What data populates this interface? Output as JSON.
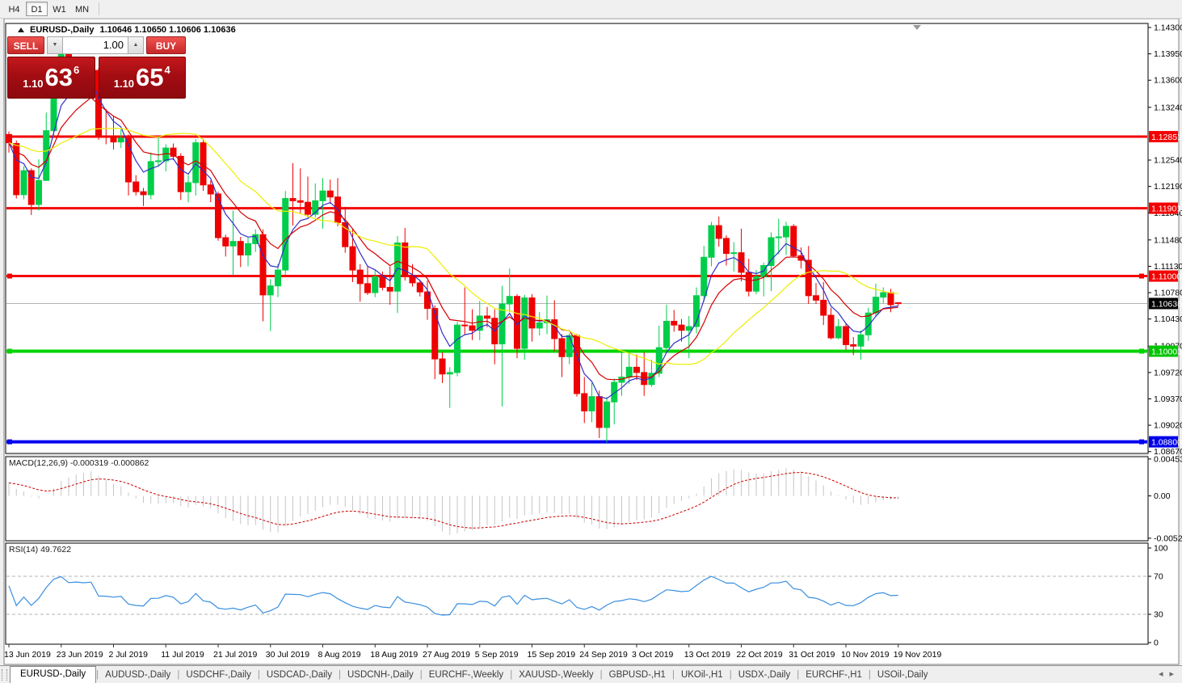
{
  "toolbar": {
    "timeframes": [
      "H4",
      "D1",
      "W1",
      "MN"
    ],
    "active": "D1"
  },
  "window": {
    "title": {
      "symbol": "EURUSD-,Daily",
      "ohlc": "1.10646 1.10650 1.10606 1.10636"
    }
  },
  "trade_panel": {
    "sell_label": "SELL",
    "buy_label": "BUY",
    "volume": "1.00",
    "sell_quote": {
      "prefix": "1.10",
      "big": "63",
      "sup": "6"
    },
    "buy_quote": {
      "prefix": "1.10",
      "big": "65",
      "sup": "4"
    }
  },
  "indicator_labels": {
    "macd": "MACD(12,26,9) -0.000319 -0.000862",
    "rsi": "RSI(14) 49.7622"
  },
  "tabs": {
    "active": "EURUSD-,Daily",
    "items": [
      "EURUSD-,Daily",
      "AUDUSD-,Daily",
      "USDCHF-,Daily",
      "USDCAD-,Daily",
      "USDCNH-,Daily",
      "EURCHF-,Weekly",
      "XAUUSD-,Weekly",
      "GBPUSD-,H1",
      "UKOil-,H1",
      "USDX-,Daily",
      "EURCHF-,H1",
      "USOil-,Daily"
    ]
  },
  "chart_data": {
    "type": "candlestick",
    "symbol": "EURUSD-",
    "timeframe": "Daily",
    "current_bar": {
      "open": 1.10646,
      "high": 1.1065,
      "low": 1.10606,
      "close": 1.10636
    },
    "y_range_visible": [
      1.0867,
      1.143
    ],
    "colors": {
      "bull": "#00CE4A",
      "bear": "#EE0101",
      "ma_fast": "#2F2FC8",
      "ma_mid": "#D40000",
      "ma_slow": "#EDED00",
      "macd_hist": "#C6C6C6",
      "macd_signal": "#CC0000",
      "rsi": "#3A8FE0",
      "level_red": "#F40000",
      "level_green": "#00D400",
      "level_blue": "#0000F0",
      "current_price_line": "#B4B4B4",
      "current_price_tag": "#000000"
    },
    "y_axis_ticks": [
      "1.14300",
      "1.13950",
      "1.13600",
      "1.13240",
      "1.12540",
      "1.12190",
      "1.11840",
      "1.11480",
      "1.11130",
      "1.10780",
      "1.10430",
      "1.10070",
      "1.09720",
      "1.09370",
      "1.09020",
      "1.08670"
    ],
    "price_tags": [
      {
        "label": "1.12851",
        "bg": "#F40000",
        "fg": "#FFFFFF"
      },
      {
        "label": "1.11901",
        "bg": "#F40000",
        "fg": "#FFFFFF"
      },
      {
        "label": "1.11000",
        "bg": "#F40000",
        "fg": "#FFFFFF"
      },
      {
        "label": "1.10636",
        "bg": "#000000",
        "fg": "#FFFFFF"
      },
      {
        "label": "1.10003",
        "bg": "#00C400",
        "fg": "#FFFFFF"
      },
      {
        "label": "1.08800",
        "bg": "#0000E8",
        "fg": "#FFFFFF"
      }
    ],
    "horizontal_lines": [
      {
        "price": 1.12851,
        "color": "#F40000",
        "width": 3,
        "handles": false
      },
      {
        "price": 1.11901,
        "color": "#F40000",
        "width": 3,
        "handles": false
      },
      {
        "price": 1.11,
        "color": "#F40000",
        "width": 3,
        "handles": true
      },
      {
        "price": 1.10003,
        "color": "#00D400",
        "width": 4,
        "handles": true
      },
      {
        "price": 1.088,
        "color": "#0000F0",
        "width": 4,
        "handles": true
      }
    ],
    "current_price": 1.10636,
    "x_labels": [
      "13 Jun 2019",
      "23 Jun 2019",
      "2 Jul 2019",
      "11 Jul 2019",
      "21 Jul 2019",
      "30 Jul 2019",
      "8 Aug 2019",
      "18 Aug 2019",
      "27 Aug 2019",
      "5 Sep 2019",
      "15 Sep 2019",
      "24 Sep 2019",
      "3 Oct 2019",
      "13 Oct 2019",
      "22 Oct 2019",
      "31 Oct 2019",
      "10 Nov 2019",
      "19 Nov 2019"
    ],
    "label_every_n_bars": 7,
    "candles": [
      [
        1.1288,
        1.1292,
        1.1264,
        1.1277
      ],
      [
        1.1276,
        1.128,
        1.1203,
        1.1208
      ],
      [
        1.1208,
        1.1246,
        1.1202,
        1.124
      ],
      [
        1.124,
        1.1243,
        1.1181,
        1.1195
      ],
      [
        1.1195,
        1.1255,
        1.1187,
        1.1227
      ],
      [
        1.1227,
        1.1317,
        1.1226,
        1.1293
      ],
      [
        1.1293,
        1.1378,
        1.1285,
        1.1369
      ],
      [
        1.1369,
        1.1404,
        1.1362,
        1.1399
      ],
      [
        1.1399,
        1.1412,
        1.1344,
        1.1365
      ],
      [
        1.1365,
        1.1391,
        1.1348,
        1.1371
      ],
      [
        1.1371,
        1.1388,
        1.1361,
        1.1367
      ],
      [
        1.1367,
        1.1391,
        1.1351,
        1.1373
      ],
      [
        1.1373,
        1.1376,
        1.1281,
        1.1286
      ],
      [
        1.1286,
        1.1322,
        1.1275,
        1.1285
      ],
      [
        1.1285,
        1.1312,
        1.1268,
        1.1278
      ],
      [
        1.1278,
        1.1295,
        1.127,
        1.1283
      ],
      [
        1.1283,
        1.1288,
        1.1207,
        1.1225
      ],
      [
        1.1225,
        1.1234,
        1.1207,
        1.1212
      ],
      [
        1.1212,
        1.1217,
        1.1193,
        1.1208
      ],
      [
        1.1208,
        1.1264,
        1.1202,
        1.1252
      ],
      [
        1.1252,
        1.1285,
        1.1245,
        1.1253
      ],
      [
        1.1253,
        1.1275,
        1.1239,
        1.127
      ],
      [
        1.127,
        1.1276,
        1.1254,
        1.1259
      ],
      [
        1.1259,
        1.1263,
        1.1201,
        1.1212
      ],
      [
        1.1212,
        1.1234,
        1.1198,
        1.1224
      ],
      [
        1.1224,
        1.1282,
        1.1207,
        1.1277
      ],
      [
        1.1277,
        1.1282,
        1.1213,
        1.1221
      ],
      [
        1.1221,
        1.1227,
        1.1198,
        1.1209
      ],
      [
        1.1209,
        1.1212,
        1.1147,
        1.1151
      ],
      [
        1.1151,
        1.1155,
        1.1126,
        1.114
      ],
      [
        1.114,
        1.1187,
        1.1101,
        1.1146
      ],
      [
        1.1146,
        1.1152,
        1.1112,
        1.1128
      ],
      [
        1.1128,
        1.1151,
        1.1113,
        1.1143
      ],
      [
        1.1143,
        1.1162,
        1.1132,
        1.1155
      ],
      [
        1.1155,
        1.1162,
        1.104,
        1.1075
      ],
      [
        1.1075,
        1.1096,
        1.1027,
        1.1087
      ],
      [
        1.1087,
        1.1116,
        1.1072,
        1.1108
      ],
      [
        1.1108,
        1.1213,
        1.1101,
        1.1203
      ],
      [
        1.1203,
        1.125,
        1.1167,
        1.12
      ],
      [
        1.12,
        1.1243,
        1.1183,
        1.1198
      ],
      [
        1.1198,
        1.1232,
        1.1178,
        1.1182
      ],
      [
        1.1182,
        1.1223,
        1.1178,
        1.12
      ],
      [
        1.12,
        1.123,
        1.1163,
        1.1213
      ],
      [
        1.1213,
        1.1228,
        1.1196,
        1.1205
      ],
      [
        1.1205,
        1.123,
        1.1166,
        1.1171
      ],
      [
        1.1171,
        1.1192,
        1.1131,
        1.1139
      ],
      [
        1.1139,
        1.1163,
        1.1092,
        1.1108
      ],
      [
        1.1108,
        1.1116,
        1.1066,
        1.109
      ],
      [
        1.109,
        1.1114,
        1.1075,
        1.1078
      ],
      [
        1.1078,
        1.1108,
        1.1072,
        1.1099
      ],
      [
        1.1099,
        1.1106,
        1.1081,
        1.1085
      ],
      [
        1.1085,
        1.1113,
        1.1062,
        1.108
      ],
      [
        1.108,
        1.1153,
        1.1051,
        1.1144
      ],
      [
        1.1144,
        1.1164,
        1.1094,
        1.1101
      ],
      [
        1.1101,
        1.1116,
        1.1086,
        1.1091
      ],
      [
        1.1091,
        1.1095,
        1.1073,
        1.1079
      ],
      [
        1.1079,
        1.1094,
        1.1042,
        1.1057
      ],
      [
        1.1057,
        1.1061,
        1.0963,
        1.099
      ],
      [
        1.099,
        1.0999,
        1.0958,
        1.097
      ],
      [
        1.097,
        1.0979,
        1.0925,
        1.0972
      ],
      [
        1.0972,
        1.1039,
        1.0967,
        1.1035
      ],
      [
        1.1035,
        1.1085,
        1.1022,
        1.1034
      ],
      [
        1.1034,
        1.1056,
        1.1015,
        1.1028
      ],
      [
        1.1028,
        1.1067,
        1.1015,
        1.1047
      ],
      [
        1.1047,
        1.1059,
        1.1032,
        1.1044
      ],
      [
        1.1044,
        1.1056,
        1.0983,
        1.101
      ],
      [
        1.101,
        1.1087,
        1.0927,
        1.1063
      ],
      [
        1.1063,
        1.111,
        1.1052,
        1.1073
      ],
      [
        1.1073,
        1.1076,
        1.0991,
        1.1004
      ],
      [
        1.1004,
        1.1075,
        1.0989,
        1.1071
      ],
      [
        1.1071,
        1.1076,
        1.1013,
        1.1031
      ],
      [
        1.1031,
        1.1052,
        1.1021,
        1.1038
      ],
      [
        1.1038,
        1.1074,
        1.1023,
        1.1042
      ],
      [
        1.1042,
        1.1068,
        1.1,
        1.1017
      ],
      [
        1.1017,
        1.1023,
        1.0966,
        1.0993
      ],
      [
        1.0993,
        1.1024,
        1.0983,
        1.1021
      ],
      [
        1.1021,
        1.1023,
        1.094,
        1.0944
      ],
      [
        1.0944,
        1.0966,
        1.0905,
        1.0921
      ],
      [
        1.0921,
        1.0958,
        1.0906,
        1.094
      ],
      [
        1.094,
        1.0948,
        1.0885,
        1.0899
      ],
      [
        1.0899,
        1.0939,
        1.0879,
        1.0933
      ],
      [
        1.0933,
        1.0964,
        1.0903,
        1.0959
      ],
      [
        1.0959,
        1.0999,
        1.0941,
        1.0966
      ],
      [
        1.0966,
        1.0999,
        1.0957,
        1.0979
      ],
      [
        1.0979,
        1.0996,
        1.0962,
        1.0972
      ],
      [
        1.0972,
        1.0999,
        1.0941,
        1.0956
      ],
      [
        1.0956,
        1.0989,
        1.0953,
        1.0971
      ],
      [
        1.0971,
        1.1034,
        1.0966,
        1.1005
      ],
      [
        1.1005,
        1.1062,
        1.1002,
        1.104
      ],
      [
        1.104,
        1.1055,
        1.1026,
        1.1035
      ],
      [
        1.1035,
        1.1043,
        1.1013,
        1.1028
      ],
      [
        1.1028,
        1.1047,
        1.0991,
        1.1033
      ],
      [
        1.1033,
        1.1085,
        1.1024,
        1.1074
      ],
      [
        1.1074,
        1.114,
        1.1066,
        1.1125
      ],
      [
        1.1125,
        1.1172,
        1.1113,
        1.1167
      ],
      [
        1.1167,
        1.1179,
        1.1139,
        1.115
      ],
      [
        1.115,
        1.1154,
        1.1114,
        1.113
      ],
      [
        1.113,
        1.1145,
        1.1106,
        1.1131
      ],
      [
        1.1131,
        1.1163,
        1.1093,
        1.1105
      ],
      [
        1.1105,
        1.1123,
        1.1073,
        1.108
      ],
      [
        1.108,
        1.1108,
        1.1076,
        1.1099
      ],
      [
        1.1099,
        1.1118,
        1.1073,
        1.1114
      ],
      [
        1.1114,
        1.1158,
        1.108,
        1.1151
      ],
      [
        1.1151,
        1.1176,
        1.1129,
        1.1152
      ],
      [
        1.1152,
        1.1172,
        1.1128,
        1.1166
      ],
      [
        1.1166,
        1.1169,
        1.1125,
        1.1127
      ],
      [
        1.1127,
        1.1138,
        1.111,
        1.1121
      ],
      [
        1.1121,
        1.114,
        1.1063,
        1.1074
      ],
      [
        1.1074,
        1.1091,
        1.1063,
        1.1068
      ],
      [
        1.1068,
        1.1092,
        1.1035,
        1.1048
      ],
      [
        1.1048,
        1.1058,
        1.1016,
        1.1018
      ],
      [
        1.1018,
        1.1043,
        1.1016,
        1.1033
      ],
      [
        1.1033,
        1.1037,
        1.1002,
        1.1009
      ],
      [
        1.1009,
        1.1019,
        1.0995,
        1.1007
      ],
      [
        1.1007,
        1.1028,
        1.0989,
        1.1022
      ],
      [
        1.1022,
        1.1058,
        1.1014,
        1.1051
      ],
      [
        1.1051,
        1.109,
        1.1046,
        1.1072
      ],
      [
        1.1072,
        1.1085,
        1.1064,
        1.1078
      ],
      [
        1.1078,
        1.1083,
        1.1052,
        1.1062
      ],
      [
        1.10646,
        1.1065,
        1.10606,
        1.10636
      ]
    ],
    "indicators": {
      "macd": {
        "fast": 12,
        "slow": 26,
        "signal": 9,
        "value_main": -0.000319,
        "value_signal": -0.000862,
        "axis": [
          "0.004536",
          "0.00",
          "-0.005205"
        ],
        "axis_values": [
          0.004536,
          0,
          -0.005205
        ]
      },
      "rsi": {
        "period": 14,
        "value": 49.7622,
        "axis": [
          "100",
          "70",
          "30",
          "0"
        ],
        "levels": [
          70,
          30
        ]
      },
      "moving_averages": [
        {
          "period": 5,
          "method": "ema",
          "color": "#2F2FC8"
        },
        {
          "period": 10,
          "method": "ema",
          "color": "#D40000"
        },
        {
          "period": 20,
          "method": "sma",
          "color": "#EDED00"
        }
      ]
    }
  }
}
